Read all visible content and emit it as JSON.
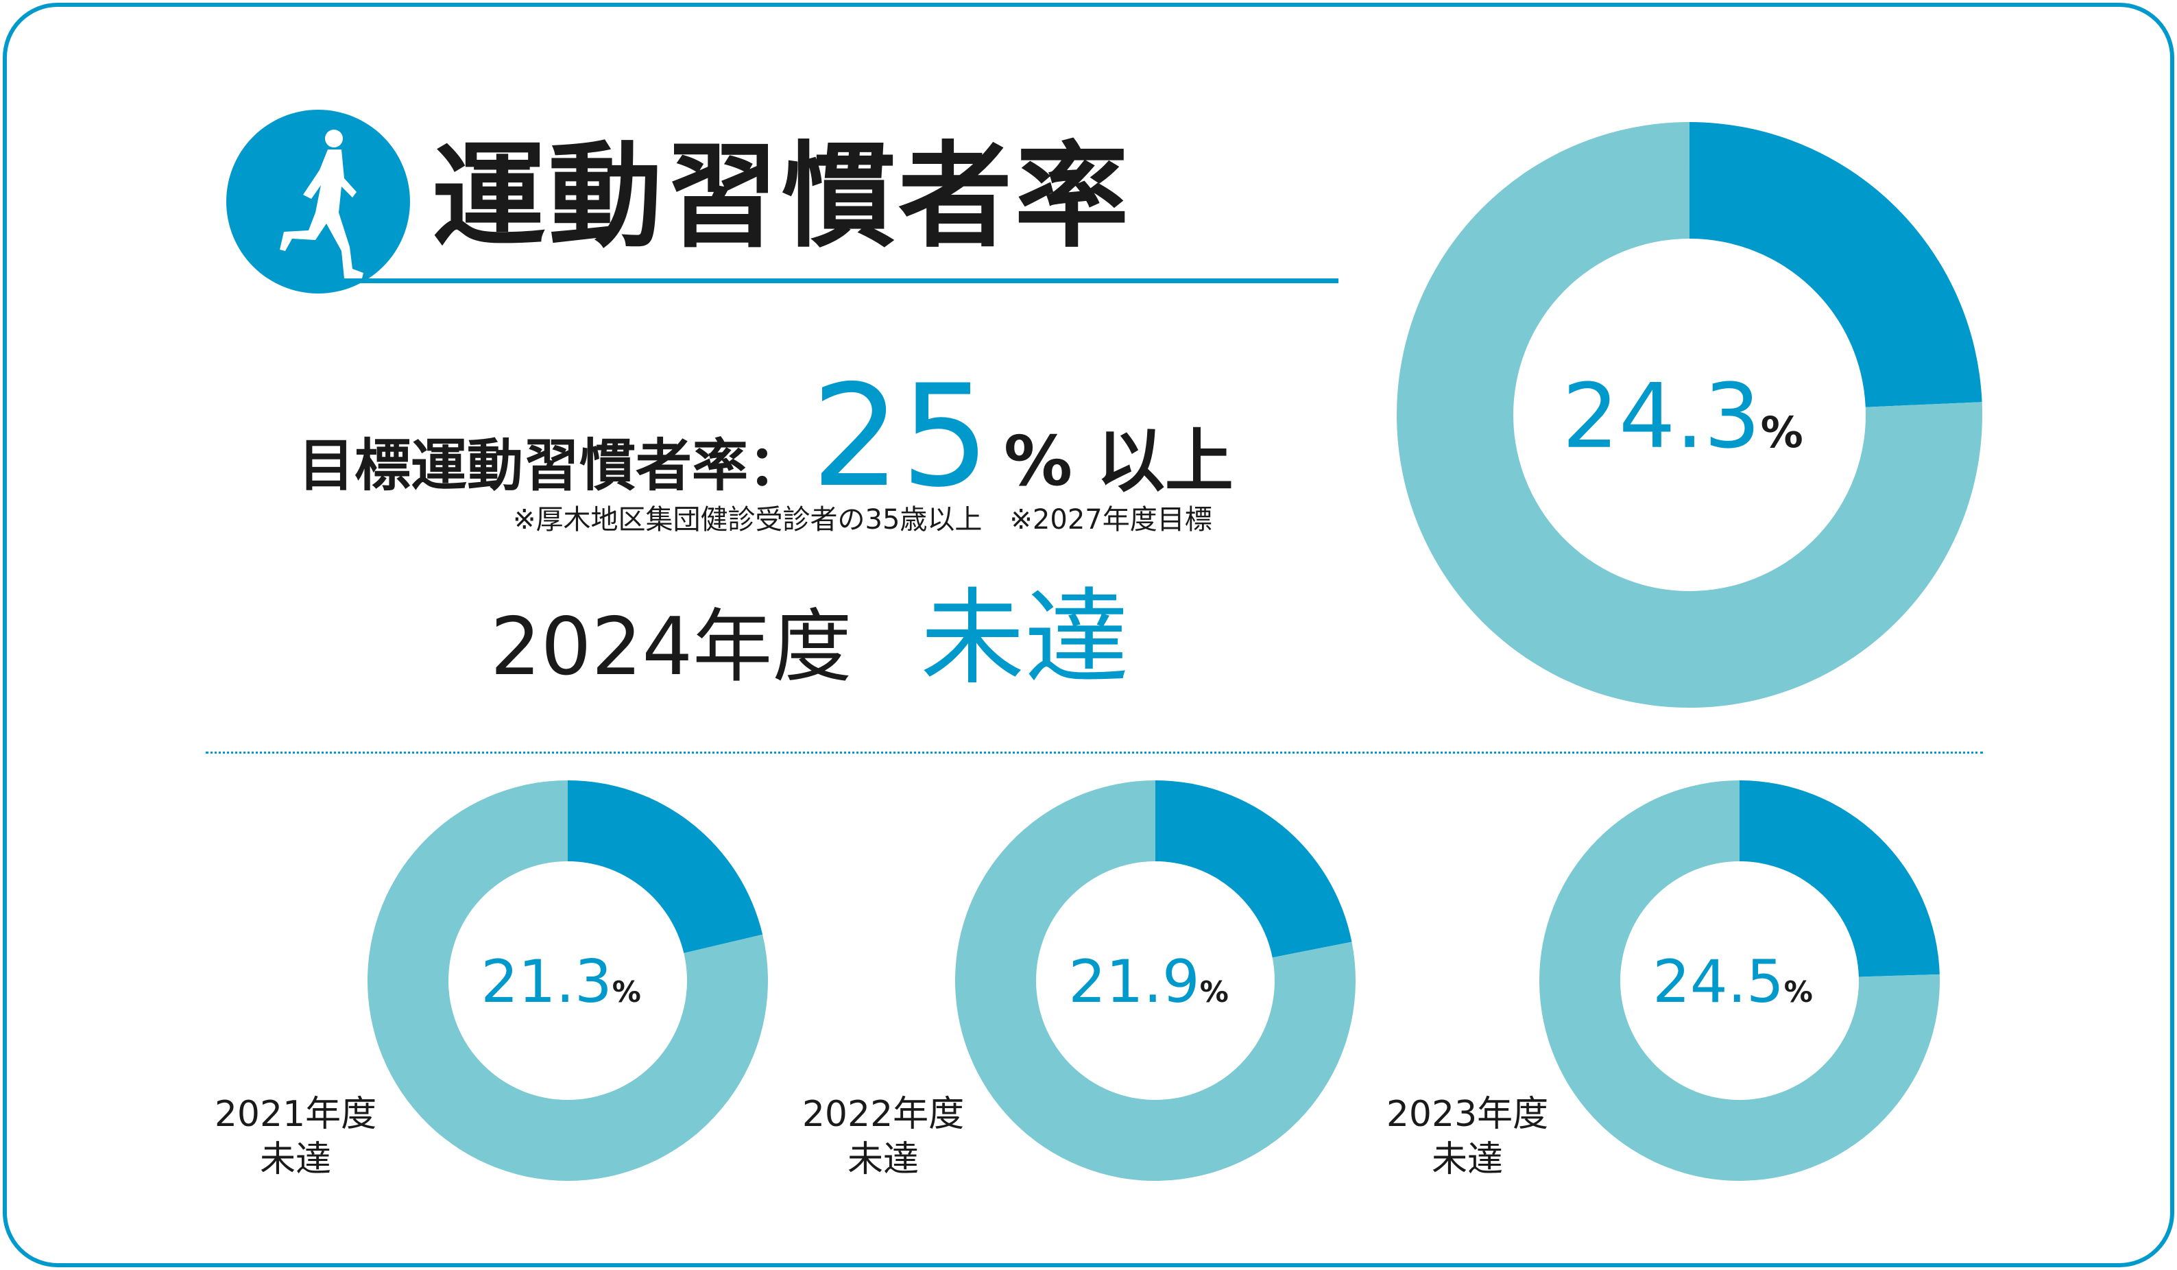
{
  "title": "運動習慣者率",
  "icon": "running-person-icon",
  "target": {
    "label": "目標運動習慣者率：",
    "value": "25",
    "unit": "% 以上"
  },
  "note": "※厚木地区集団健診受診者の35歳以上　※2027年度目標",
  "current": {
    "year_label": "2024年度",
    "status": "未達"
  },
  "colors": {
    "achieved": "#0099cc",
    "remaining": "#7ac9d3",
    "accent": "#0099cc"
  },
  "chart_data": [
    {
      "type": "pie",
      "title": "2024年度",
      "values": [
        24.3,
        75.7
      ],
      "label": "24.3",
      "unit": "%",
      "status": "未達"
    },
    {
      "type": "pie",
      "title": "2021年度",
      "values": [
        21.3,
        78.7
      ],
      "label": "21.3",
      "unit": "%",
      "status": "未達"
    },
    {
      "type": "pie",
      "title": "2022年度",
      "values": [
        21.9,
        78.1
      ],
      "label": "21.9",
      "unit": "%",
      "status": "未達"
    },
    {
      "type": "pie",
      "title": "2023年度",
      "values": [
        24.5,
        75.5
      ],
      "label": "24.5",
      "unit": "%",
      "status": "未達"
    }
  ]
}
